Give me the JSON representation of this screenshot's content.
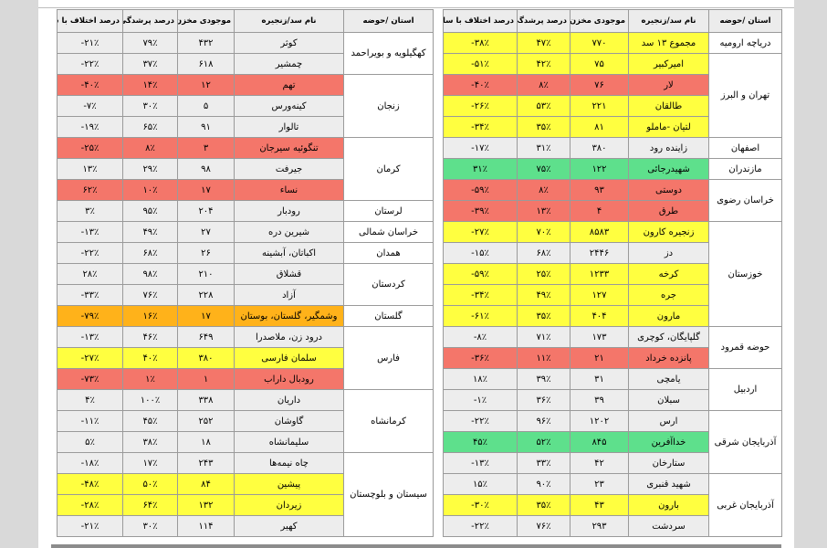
{
  "colors": {
    "red": "#f4766a",
    "yellow": "#ffff40",
    "green": "#5ee08c",
    "orange": "#ffb21a",
    "grey": "#ededed"
  },
  "headers": {
    "province": "استان /حوضه",
    "dam_name": "نام سد/زنجیره",
    "storage": "موجودی مخزن",
    "fill_percent": "درصد پرشدگی",
    "yoy_diff": "درصد اختلاف با سال قبل"
  },
  "right_table": [
    {
      "province": "دریاچه ارومیه",
      "rows": [
        {
          "name": "مجموع ۱۳ سد",
          "storage": "۷۷۰",
          "fill": "۴۷٪",
          "diff": "-۳۸٪",
          "hl": "yellow"
        }
      ]
    },
    {
      "province": "تهران و البرز",
      "rows": [
        {
          "name": "امیرکبیر",
          "storage": "۷۵",
          "fill": "۴۲٪",
          "diff": "-۵۱٪",
          "hl": "yellow"
        },
        {
          "name": "لار",
          "storage": "۷۶",
          "fill": "۸٪",
          "diff": "-۴۰٪",
          "hl": "red"
        },
        {
          "name": "طالقان",
          "storage": "۲۲۱",
          "fill": "۵۳٪",
          "diff": "-۲۶٪",
          "hl": "yellow"
        },
        {
          "name": "لتیان -ماملو",
          "storage": "۸۱",
          "fill": "۳۵٪",
          "diff": "-۳۴٪",
          "hl": "yellow"
        }
      ]
    },
    {
      "province": "اصفهان",
      "rows": [
        {
          "name": "زاینده رود",
          "storage": "۳۸۰",
          "fill": "۳۱٪",
          "diff": "-۱۷٪",
          "hl": "grey"
        }
      ]
    },
    {
      "province": "مازندران",
      "rows": [
        {
          "name": "شهیدرجائی",
          "storage": "۱۲۲",
          "fill": "۷۵٪",
          "diff": "۳۱٪",
          "hl": "green"
        }
      ]
    },
    {
      "province": "خراسان رضوی",
      "rows": [
        {
          "name": "دوستی",
          "storage": "۹۳",
          "fill": "۸٪",
          "diff": "-۵۹٪",
          "hl": "red"
        },
        {
          "name": "طرق",
          "storage": "۴",
          "fill": "۱۳٪",
          "diff": "-۳۹٪",
          "hl": "red"
        }
      ]
    },
    {
      "province": "خوزستان",
      "rows": [
        {
          "name": "زنجیره کارون",
          "storage": "۸۵۸۳",
          "fill": "۷۰٪",
          "diff": "-۲۷٪",
          "hl": "yellow"
        },
        {
          "name": "دز",
          "storage": "۲۴۴۶",
          "fill": "۶۸٪",
          "diff": "-۱۵٪",
          "hl": "grey"
        },
        {
          "name": "کرخه",
          "storage": "۱۲۳۳",
          "fill": "۲۵٪",
          "diff": "-۵۹٪",
          "hl": "yellow"
        },
        {
          "name": "جره",
          "storage": "۱۲۷",
          "fill": "۴۹٪",
          "diff": "-۳۴٪",
          "hl": "yellow"
        },
        {
          "name": "مارون",
          "storage": "۴۰۴",
          "fill": "۳۵٪",
          "diff": "-۶۱٪",
          "hl": "yellow"
        }
      ]
    },
    {
      "province": "حوضه قمرود",
      "rows": [
        {
          "name": "گلپایگان، کوچری",
          "storage": "۱۷۳",
          "fill": "۷۱٪",
          "diff": "-۸٪",
          "hl": "grey"
        },
        {
          "name": "پانزده خرداد",
          "storage": "۲۱",
          "fill": "۱۱٪",
          "diff": "-۳۶٪",
          "hl": "red"
        }
      ]
    },
    {
      "province": "اردبیل",
      "rows": [
        {
          "name": "یامچی",
          "storage": "۳۱",
          "fill": "۳۹٪",
          "diff": "۱۸٪",
          "hl": "grey"
        },
        {
          "name": "سبلان",
          "storage": "۳۹",
          "fill": "۳۶٪",
          "diff": "-۱٪",
          "hl": "grey"
        }
      ]
    },
    {
      "province": "آذربایجان شرقی",
      "rows": [
        {
          "name": "ارس",
          "storage": "۱۲۰۲",
          "fill": "۹۶٪",
          "diff": "-۲۲٪",
          "hl": "grey"
        },
        {
          "name": "خداآفرین",
          "storage": "۸۴۵",
          "fill": "۵۲٪",
          "diff": "۴۵٪",
          "hl": "green"
        },
        {
          "name": "ستارخان",
          "storage": "۴۲",
          "fill": "۳۳٪",
          "diff": "-۱۳٪",
          "hl": "grey"
        }
      ]
    },
    {
      "province": "آذربایجان غربی",
      "rows": [
        {
          "name": "شهید قنبری",
          "storage": "۲۳",
          "fill": "۹۰٪",
          "diff": "۱۵٪",
          "hl": "grey"
        },
        {
          "name": "بارون",
          "storage": "۴۳",
          "fill": "۳۵٪",
          "diff": "-۳۰٪",
          "hl": "yellow"
        },
        {
          "name": "سردشت",
          "storage": "۲۹۳",
          "fill": "۷۶٪",
          "diff": "-۲۲٪",
          "hl": "grey"
        }
      ]
    }
  ],
  "left_table": [
    {
      "province": "کهگیلویه و بویراحمد",
      "rows": [
        {
          "name": "کوثر",
          "storage": "۴۳۲",
          "fill": "۷۹٪",
          "diff": "-۲۱٪",
          "hl": "grey"
        },
        {
          "name": "چمشیر",
          "storage": "۶۱۸",
          "fill": "۳۷٪",
          "diff": "-۲۲٪",
          "hl": "grey"
        }
      ]
    },
    {
      "province": "زنجان",
      "rows": [
        {
          "name": "تهم",
          "storage": "۱۲",
          "fill": "۱۴٪",
          "diff": "-۴۰٪",
          "hl": "red"
        },
        {
          "name": "کینه‌ورس",
          "storage": "۵",
          "fill": "۳۰٪",
          "diff": "-۷٪",
          "hl": "grey"
        },
        {
          "name": "تالوار",
          "storage": "۹۱",
          "fill": "۶۵٪",
          "diff": "-۱۹٪",
          "hl": "grey"
        }
      ]
    },
    {
      "province": "کرمان",
      "rows": [
        {
          "name": "تنگوئیه سیرجان",
          "storage": "۳",
          "fill": "۸٪",
          "diff": "-۲۵٪",
          "hl": "red"
        },
        {
          "name": "جیرفت",
          "storage": "۹۸",
          "fill": "۲۹٪",
          "diff": "۱۳٪",
          "hl": "grey"
        },
        {
          "name": "نساء",
          "storage": "۱۷",
          "fill": "۱۰٪",
          "diff": "۶۲٪",
          "hl": "red"
        }
      ]
    },
    {
      "province": "لرستان",
      "rows": [
        {
          "name": "رودبار",
          "storage": "۲۰۴",
          "fill": "۹۵٪",
          "diff": "۳٪",
          "hl": "grey"
        }
      ]
    },
    {
      "province": "خراسان شمالی",
      "rows": [
        {
          "name": "شیرین دره",
          "storage": "۲۷",
          "fill": "۴۹٪",
          "diff": "-۱۳٪",
          "hl": "grey"
        }
      ]
    },
    {
      "province": "همدان",
      "rows": [
        {
          "name": "اکباتان، آبشینه",
          "storage": "۲۶",
          "fill": "۶۸٪",
          "diff": "-۲۲٪",
          "hl": "grey"
        }
      ]
    },
    {
      "province": "کردستان",
      "rows": [
        {
          "name": "قشلاق",
          "storage": "۲۱۰",
          "fill": "۹۸٪",
          "diff": "۲۸٪",
          "hl": "grey"
        },
        {
          "name": "آزاد",
          "storage": "۲۲۸",
          "fill": "۷۶٪",
          "diff": "-۳۳٪",
          "hl": "grey"
        }
      ]
    },
    {
      "province": "گلستان",
      "rows": [
        {
          "name": "وشمگیر، گلستان، بوستان",
          "storage": "۱۷",
          "fill": "۱۶٪",
          "diff": "-۷۹٪",
          "hl": "orange"
        }
      ]
    },
    {
      "province": "فارس",
      "rows": [
        {
          "name": "درود زن، ملاصدرا",
          "storage": "۶۴۹",
          "fill": "۴۶٪",
          "diff": "-۱۳٪",
          "hl": "grey"
        },
        {
          "name": "سلمان فارسی",
          "storage": "۳۸۰",
          "fill": "۴۰٪",
          "diff": "-۲۷٪",
          "hl": "yellow"
        },
        {
          "name": "رودبال داراب",
          "storage": "۱",
          "fill": "۱٪",
          "diff": "-۷۳٪",
          "hl": "red"
        }
      ]
    },
    {
      "province": "کرمانشاه",
      "rows": [
        {
          "name": "داریان",
          "storage": "۳۳۸",
          "fill": "۱۰۰٪",
          "diff": "۴٪",
          "hl": "grey"
        },
        {
          "name": "گاوشان",
          "storage": "۲۵۲",
          "fill": "۴۵٪",
          "diff": "-۱۱٪",
          "hl": "grey"
        },
        {
          "name": "سلیمانشاه",
          "storage": "۱۸",
          "fill": "۳۸٪",
          "diff": "۵٪",
          "hl": "grey"
        }
      ]
    },
    {
      "province": "سیستان و بلوچستان",
      "rows": [
        {
          "name": "چاه نیمه‌ها",
          "storage": "۲۴۳",
          "fill": "۱۷٪",
          "diff": "-۱۸٪",
          "hl": "grey"
        },
        {
          "name": "پیشین",
          "storage": "۸۴",
          "fill": "۵۰٪",
          "diff": "-۴۸٪",
          "hl": "yellow"
        },
        {
          "name": "زیردان",
          "storage": "۱۳۲",
          "fill": "۶۴٪",
          "diff": "-۲۸٪",
          "hl": "yellow"
        },
        {
          "name": "کهیر",
          "storage": "۱۱۴",
          "fill": "۳۰٪",
          "diff": "-۲۱٪",
          "hl": "grey"
        }
      ]
    }
  ]
}
